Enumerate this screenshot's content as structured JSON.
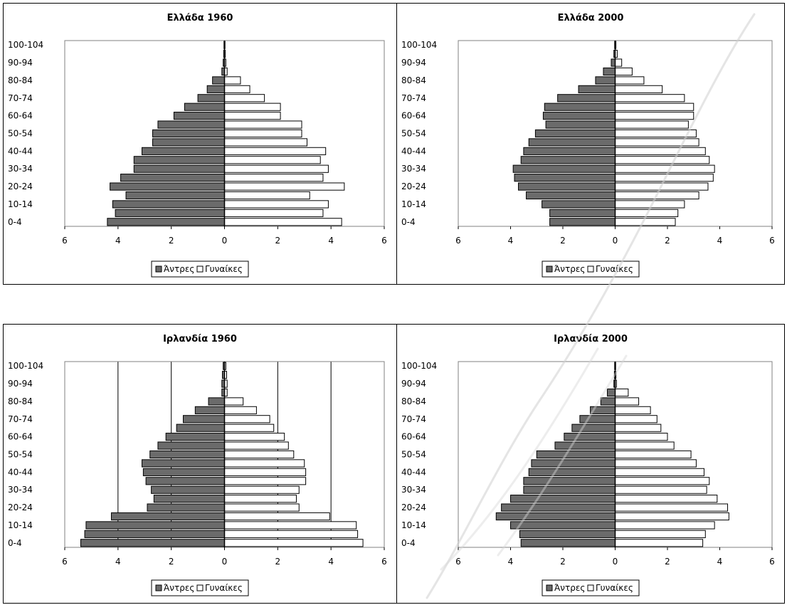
{
  "chart_data": [
    {
      "type": "bar",
      "title": "Ελλάδα 1960",
      "categories": [
        "0-4",
        "5-9",
        "10-14",
        "15-19",
        "20-24",
        "25-29",
        "30-34",
        "35-39",
        "40-44",
        "45-49",
        "50-54",
        "55-59",
        "60-64",
        "65-69",
        "70-74",
        "75-79",
        "80-84",
        "85-89",
        "90-94",
        "95-99",
        "100-104"
      ],
      "ytick_labels": [
        "100-104",
        "90-94",
        "80-84",
        "70-74",
        "60-64",
        "50-54",
        "40-44",
        "30-34",
        "20-24",
        "10-14",
        "0-4"
      ],
      "series": [
        {
          "name": "Άντρες",
          "values": [
            4.4,
            4.1,
            4.2,
            3.7,
            4.3,
            3.9,
            3.4,
            3.4,
            3.1,
            2.7,
            2.7,
            2.5,
            1.9,
            1.5,
            1.0,
            0.65,
            0.45,
            0.1,
            0.05,
            0.03,
            0.02
          ]
        },
        {
          "name": "Γυναίκες",
          "values": [
            4.4,
            3.7,
            3.9,
            3.2,
            4.5,
            3.7,
            3.9,
            3.6,
            3.8,
            3.1,
            2.9,
            2.9,
            2.1,
            2.1,
            1.5,
            0.95,
            0.6,
            0.1,
            0.05,
            0.03,
            0.02
          ]
        }
      ],
      "xlim": [
        -6,
        6
      ],
      "xtick_labels": [
        "6",
        "4",
        "2",
        "0",
        "2",
        "4",
        "6"
      ],
      "grid": false,
      "legend": "bottom"
    },
    {
      "type": "bar",
      "title": "Ελλάδα 2000",
      "categories": [
        "0-4",
        "5-9",
        "10-14",
        "15-19",
        "20-24",
        "25-29",
        "30-34",
        "35-39",
        "40-44",
        "45-49",
        "50-54",
        "55-59",
        "60-64",
        "65-69",
        "70-74",
        "75-79",
        "80-84",
        "85-89",
        "90-94",
        "95-99",
        "100-104"
      ],
      "ytick_labels": [
        "100-104",
        "90-94",
        "80-84",
        "70-74",
        "60-64",
        "50-54",
        "40-44",
        "30-34",
        "20-24",
        "10-14",
        "0-4"
      ],
      "series": [
        {
          "name": "Άντρες",
          "values": [
            2.5,
            2.5,
            2.8,
            3.4,
            3.7,
            3.85,
            3.9,
            3.6,
            3.5,
            3.3,
            3.05,
            2.65,
            2.75,
            2.7,
            2.2,
            1.4,
            0.75,
            0.45,
            0.15,
            0.05,
            0.02
          ]
        },
        {
          "name": "Γυναίκες",
          "values": [
            2.3,
            2.4,
            2.65,
            3.2,
            3.55,
            3.75,
            3.8,
            3.6,
            3.45,
            3.2,
            3.1,
            2.8,
            3.0,
            3.0,
            2.65,
            1.8,
            1.1,
            0.65,
            0.25,
            0.08,
            0.03
          ]
        }
      ],
      "xlim": [
        -6,
        6
      ],
      "xtick_labels": [
        "6",
        "4",
        "2",
        "0",
        "2",
        "4",
        "6"
      ],
      "grid": false,
      "legend": "bottom"
    },
    {
      "type": "bar",
      "title": "Ιρλανδία 1960",
      "categories": [
        "0-4",
        "5-9",
        "10-14",
        "15-19",
        "20-24",
        "25-29",
        "30-34",
        "35-39",
        "40-44",
        "45-49",
        "50-54",
        "55-59",
        "60-64",
        "65-69",
        "70-74",
        "75-79",
        "80-84",
        "85-89",
        "90-94",
        "95-99",
        "100-104"
      ],
      "ytick_labels": [
        "100-104",
        "90-94",
        "80-84",
        "70-74",
        "60-64",
        "50-54",
        "40-44",
        "30-34",
        "20-24",
        "10-14",
        "0-4"
      ],
      "series": [
        {
          "name": "Άντρες",
          "values": [
            5.4,
            5.25,
            5.2,
            4.25,
            2.9,
            2.65,
            2.75,
            2.95,
            3.05,
            3.1,
            2.8,
            2.5,
            2.2,
            1.8,
            1.55,
            1.1,
            0.6,
            0.1,
            0.1,
            0.08,
            0.05
          ]
        },
        {
          "name": "Γυναίκες",
          "values": [
            5.2,
            5.0,
            4.95,
            3.95,
            2.8,
            2.7,
            2.8,
            3.05,
            3.05,
            3.0,
            2.6,
            2.4,
            2.25,
            1.85,
            1.7,
            1.2,
            0.7,
            0.1,
            0.1,
            0.08,
            0.05
          ]
        }
      ],
      "xlim": [
        -6,
        6
      ],
      "xtick_labels": [
        "6",
        "4",
        "2",
        "0",
        "2",
        "4",
        "6"
      ],
      "grid": true,
      "legend": "bottom"
    },
    {
      "type": "bar",
      "title": "Ιρλανδία 2000",
      "categories": [
        "0-4",
        "5-9",
        "10-14",
        "15-19",
        "20-24",
        "25-29",
        "30-34",
        "35-39",
        "40-44",
        "45-49",
        "50-54",
        "55-59",
        "60-64",
        "65-69",
        "70-74",
        "75-79",
        "80-84",
        "85-89",
        "90-94",
        "95-99",
        "100-104"
      ],
      "ytick_labels": [
        "100-104",
        "90-94",
        "80-84",
        "70-74",
        "60-64",
        "50-54",
        "40-44",
        "30-34",
        "20-24",
        "10-14",
        "0-4"
      ],
      "series": [
        {
          "name": "Άντρες",
          "values": [
            3.6,
            3.65,
            4.0,
            4.55,
            4.35,
            4.0,
            3.5,
            3.5,
            3.3,
            3.2,
            3.0,
            2.3,
            1.95,
            1.65,
            1.35,
            0.95,
            0.55,
            0.3,
            0.05,
            0.03,
            0.02
          ]
        },
        {
          "name": "Γυναίκες",
          "values": [
            3.35,
            3.45,
            3.8,
            4.35,
            4.3,
            3.9,
            3.5,
            3.6,
            3.4,
            3.1,
            2.9,
            2.25,
            2.0,
            1.75,
            1.6,
            1.35,
            0.9,
            0.5,
            0.05,
            0.03,
            0.02
          ]
        }
      ],
      "xlim": [
        -6,
        6
      ],
      "xtick_labels": [
        "6",
        "4",
        "2",
        "0",
        "2",
        "4",
        "6"
      ],
      "grid": false,
      "legend": "bottom"
    }
  ],
  "colors": {
    "male": "#6b6b6b",
    "female": "#ffffff",
    "border": "#000000",
    "watermark": "#c8c8c8"
  }
}
